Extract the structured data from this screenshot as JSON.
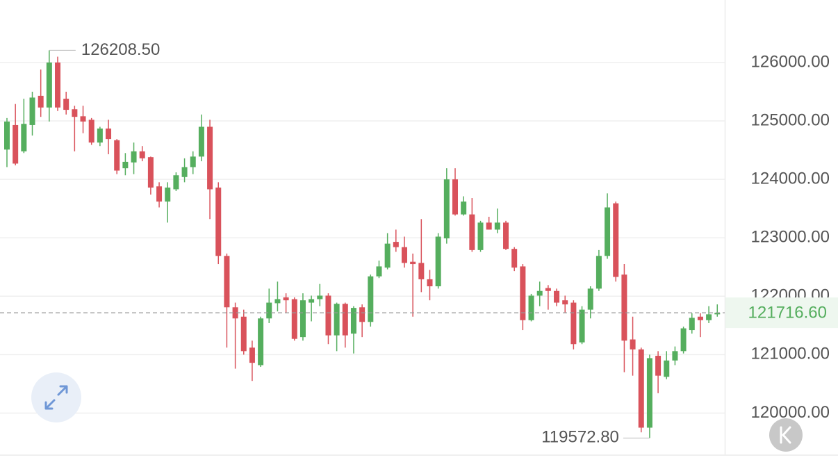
{
  "chart_data": {
    "type": "candlestick",
    "open": [
      124510,
      124930,
      124480,
      124930,
      125430,
      125230,
      126000,
      125380,
      125200,
      125080,
      125020,
      124630,
      124870,
      124670,
      124190,
      124290,
      124480,
      124380,
      123880,
      123620,
      123830,
      124040,
      124210,
      124390,
      124900,
      123860,
      122690,
      121810,
      121650,
      121120,
      120820,
      121620,
      121880,
      121980,
      121950,
      121300,
      121890,
      121950,
      122010,
      121330,
      121870,
      121360,
      121810,
      121560,
      122340,
      122490,
      122930,
      122840,
      122590,
      122570,
      122290,
      122170,
      122990,
      124000,
      123400,
      123400,
      122790,
      123260,
      123140,
      123260,
      122810,
      122510,
      121590,
      122010,
      122140,
      122090,
      121930,
      121890,
      121210,
      121770,
      122130,
      122690,
      123590,
      122370,
      121260,
      121090,
      119750,
      120980,
      120620,
      120900,
      121060,
      121420,
      121650,
      121590,
      121690
    ],
    "close": [
      124990,
      124270,
      124950,
      125400,
      125230,
      126000,
      125230,
      125190,
      125070,
      124990,
      124630,
      124870,
      124690,
      124150,
      124300,
      124480,
      124360,
      123860,
      123620,
      123860,
      124070,
      124210,
      124390,
      124900,
      123830,
      122690,
      121810,
      121620,
      121060,
      120860,
      121620,
      121890,
      121950,
      121930,
      121270,
      121930,
      121950,
      122010,
      121330,
      121870,
      121330,
      121800,
      121560,
      122340,
      122510,
      122900,
      122840,
      122570,
      122550,
      122290,
      122170,
      123020,
      124000,
      123400,
      123620,
      122790,
      123260,
      123140,
      123260,
      122810,
      122490,
      121590,
      122010,
      122090,
      122090,
      121890,
      121860,
      121180,
      121770,
      122130,
      122690,
      123520,
      122330,
      121240,
      121090,
      119750,
      120940,
      120640,
      120900,
      121060,
      121450,
      121630,
      121590,
      121690,
      121716.6
    ],
    "high": [
      125050,
      125290,
      125380,
      125500,
      125880,
      126208.5,
      126100,
      125500,
      125260,
      125260,
      125050,
      124900,
      125020,
      124690,
      124450,
      124630,
      124570,
      124390,
      123950,
      123950,
      124120,
      124360,
      124480,
      125110,
      125020,
      123950,
      122730,
      121890,
      121770,
      121240,
      121650,
      122130,
      122250,
      122050,
      121980,
      122050,
      122010,
      122210,
      122050,
      121890,
      121890,
      121830,
      121860,
      122370,
      122610,
      123080,
      123140,
      123020,
      122730,
      123320,
      122450,
      123080,
      124190,
      124190,
      123710,
      123680,
      123290,
      123360,
      123500,
      123290,
      122840,
      122550,
      122040,
      122250,
      122190,
      122130,
      122010,
      121930,
      121830,
      122170,
      122790,
      123760,
      123620,
      122550,
      121650,
      121120,
      121000,
      121060,
      121060,
      121140,
      121480,
      121710,
      121710,
      121830,
      121860
    ],
    "low": [
      124210,
      124240,
      124450,
      124750,
      125070,
      124990,
      125170,
      125110,
      124480,
      124790,
      124590,
      124570,
      124430,
      124090,
      124070,
      124090,
      124310,
      123740,
      123520,
      123260,
      123800,
      123950,
      124090,
      124310,
      123320,
      122550,
      121120,
      120760,
      121000,
      120550,
      120790,
      121540,
      121740,
      121710,
      121240,
      121240,
      121570,
      121830,
      121180,
      121060,
      121120,
      121020,
      121300,
      121480,
      122310,
      122460,
      122760,
      122490,
      121650,
      122070,
      121930,
      122130,
      122900,
      123380,
      123380,
      122760,
      122760,
      123140,
      123080,
      122790,
      122430,
      121420,
      121570,
      121830,
      121770,
      121830,
      121710,
      121090,
      121180,
      121620,
      122090,
      122640,
      122250,
      120700,
      120640,
      119670,
      119572.8,
      120340,
      120580,
      120820,
      121020,
      121360,
      121300,
      121540,
      121650
    ],
    "up_color": "#55ae5e",
    "down_color": "#d9525b",
    "ylim": [
      119280,
      127070
    ],
    "yticks": [
      {
        "value": 120000,
        "label": "120000.00"
      },
      {
        "value": 121000,
        "label": "121000.00"
      },
      {
        "value": 122000,
        "label": "122000.00"
      },
      {
        "value": 123000,
        "label": "123000.00"
      },
      {
        "value": 124000,
        "label": "124000.00"
      },
      {
        "value": 125000,
        "label": "125000.00"
      },
      {
        "value": 126000,
        "label": "126000.00"
      }
    ],
    "grid": true,
    "max_label": "126208.50",
    "min_label": "119572.80",
    "last_price": {
      "value": 121716.6,
      "label": "121716.60"
    }
  }
}
